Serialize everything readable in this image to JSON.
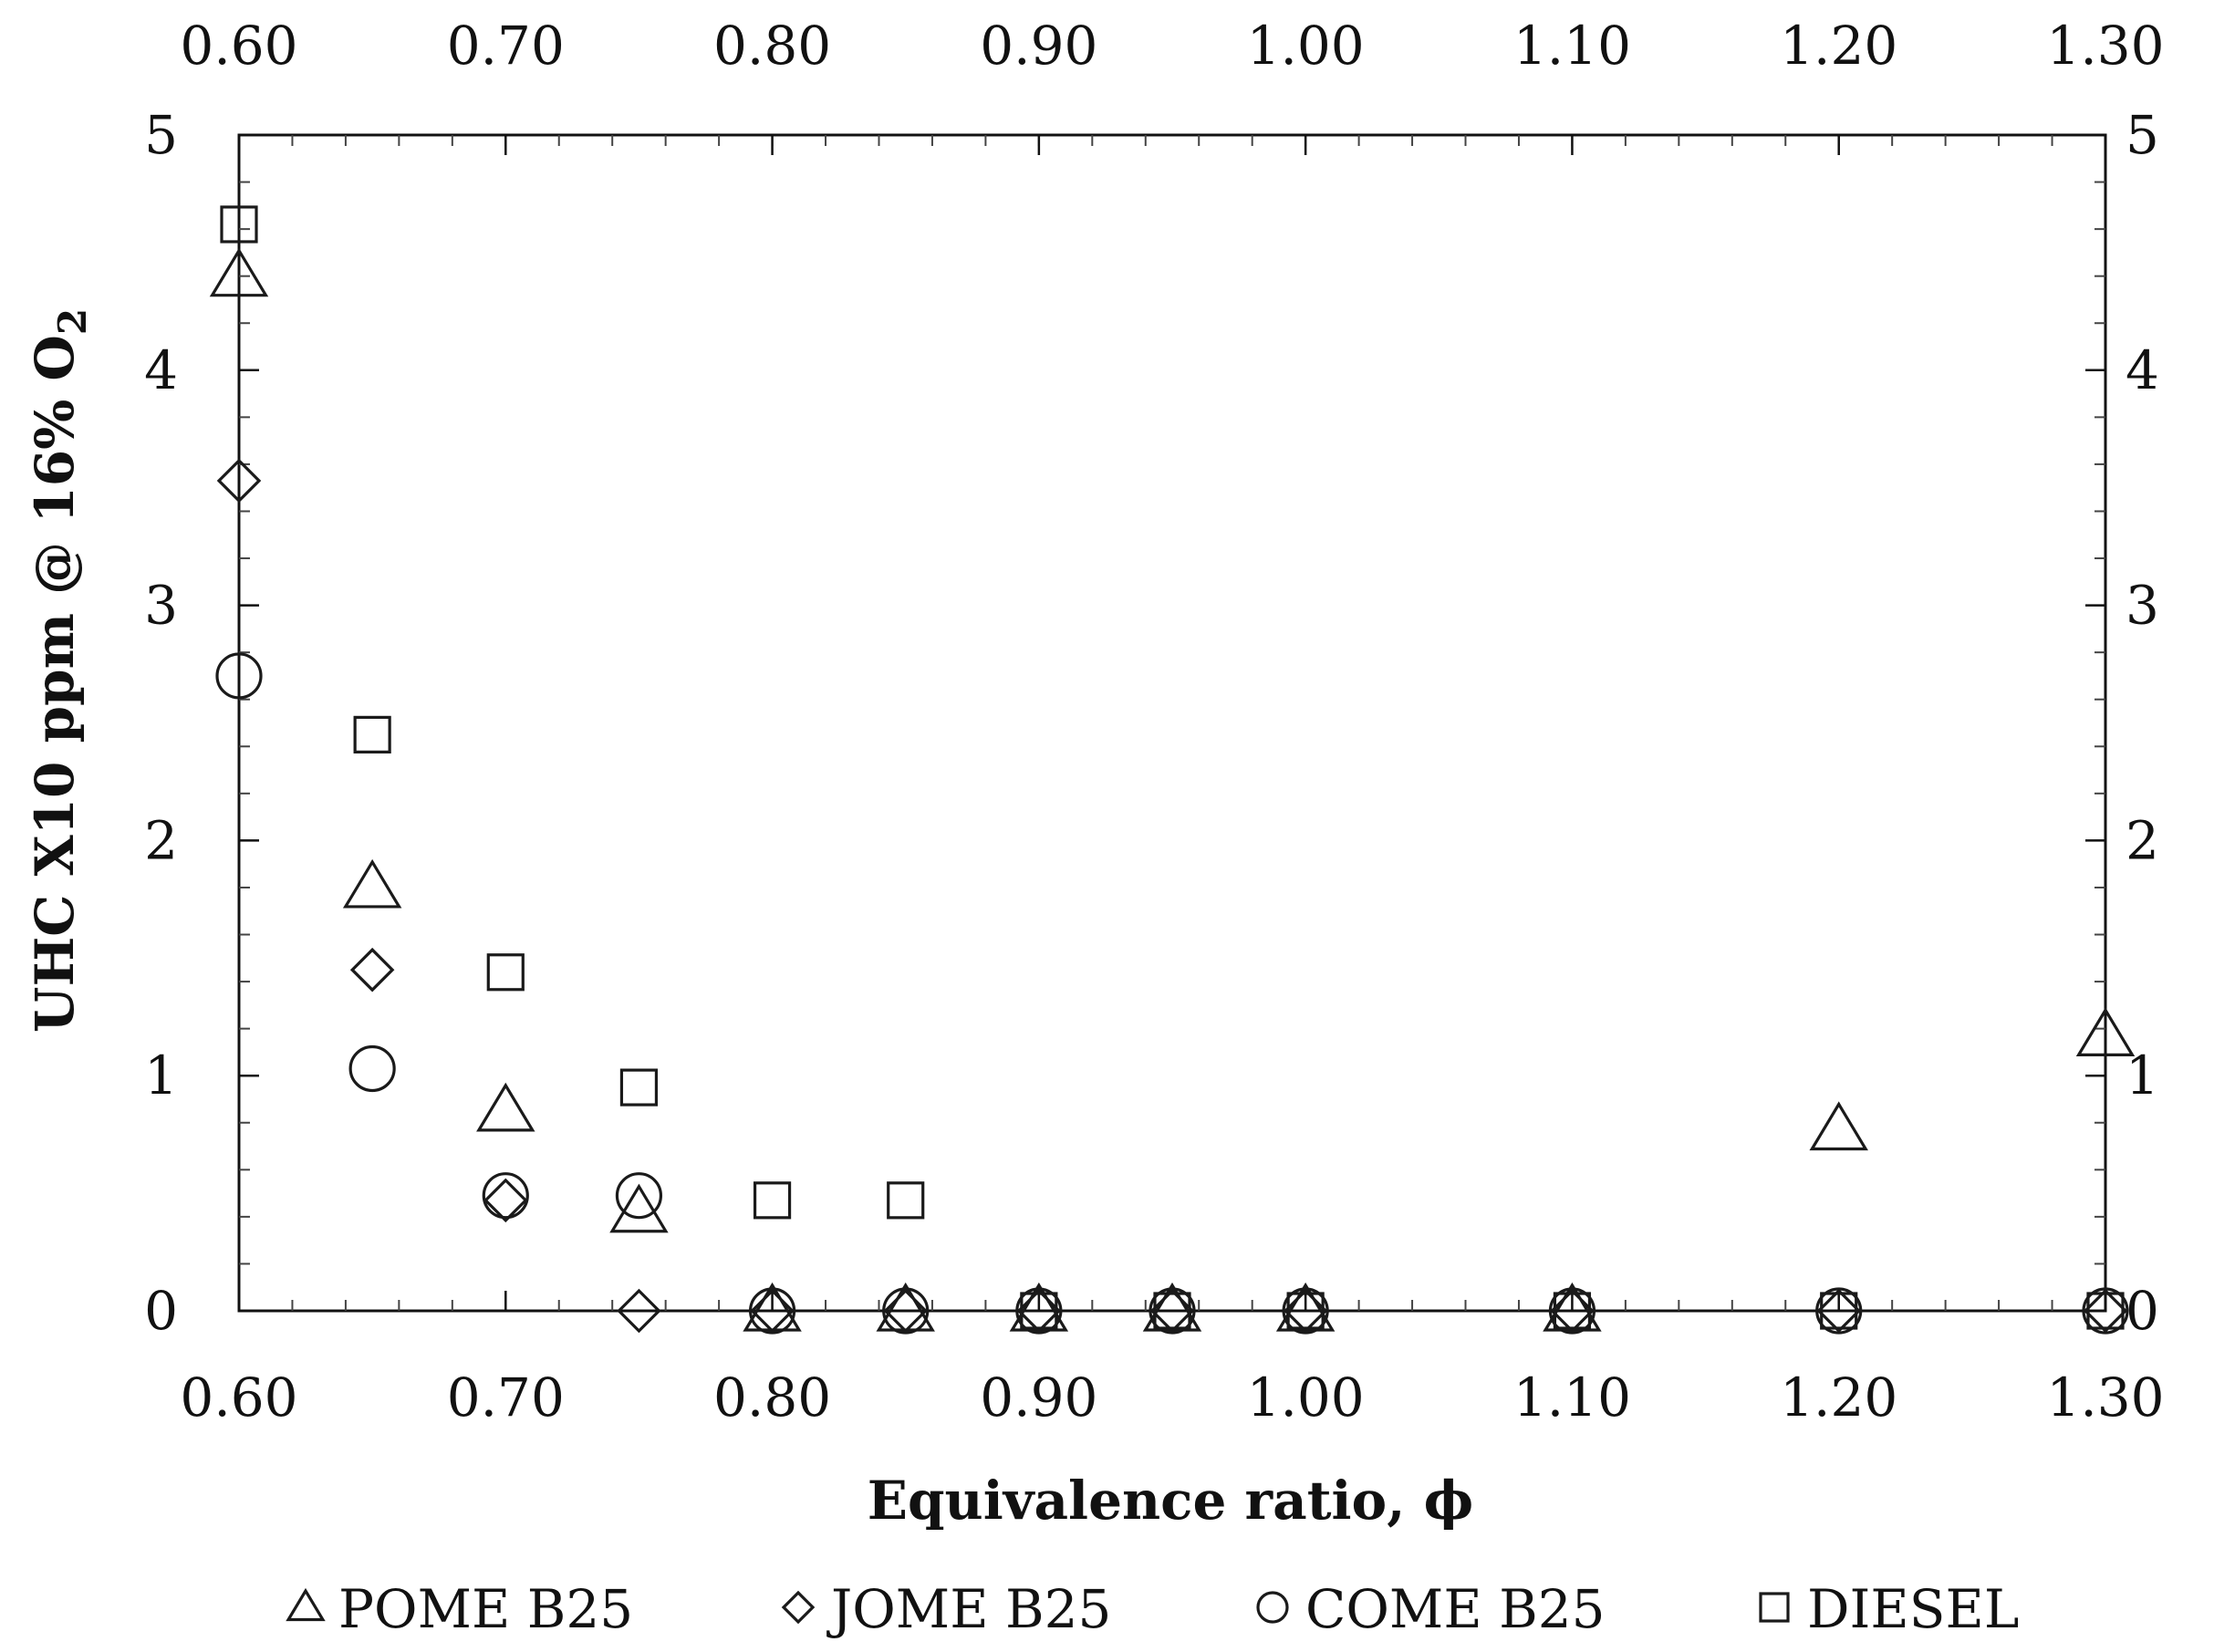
{
  "chart_data": {
    "type": "scatter",
    "xlabel": "Equivalence ratio, ϕ",
    "ylabel_main": "UHC X10 ppm @ 16% O",
    "ylabel_subscript": "2",
    "xlim": [
      0.6,
      1.3
    ],
    "ylim": [
      0,
      5
    ],
    "x_ticks": [
      "0.60",
      "0.70",
      "0.80",
      "0.90",
      "1.00",
      "1.10",
      "1.20",
      "1.30"
    ],
    "y_ticks": [
      "0",
      "1",
      "2",
      "3",
      "4",
      "5"
    ],
    "grid": false,
    "legend_position": "bottom",
    "series": [
      {
        "name": "POME B25",
        "marker": "triangle",
        "x": [
          0.6,
          0.65,
          0.7,
          0.75,
          0.8,
          0.85,
          0.9,
          0.95,
          1.0,
          1.1,
          1.2,
          1.3
        ],
        "y": [
          4.4,
          1.8,
          0.85,
          0.42,
          0,
          0,
          0,
          0,
          0,
          0,
          0.77,
          1.17
        ]
      },
      {
        "name": "JOME B25",
        "marker": "diamond",
        "x": [
          0.6,
          0.65,
          0.7,
          0.75,
          0.8,
          0.85,
          0.9,
          0.95,
          1.0,
          1.1,
          1.2,
          1.3
        ],
        "y": [
          3.53,
          1.45,
          0.47,
          0,
          0,
          0,
          0,
          0,
          0,
          0,
          0,
          0
        ]
      },
      {
        "name": "COME B25",
        "marker": "circle",
        "x": [
          0.6,
          0.65,
          0.7,
          0.75,
          0.8,
          0.85,
          0.9,
          0.95,
          1.0,
          1.1,
          1.2,
          1.3
        ],
        "y": [
          2.7,
          1.03,
          0.49,
          0.49,
          0,
          0,
          0,
          0,
          0,
          0,
          0,
          0
        ]
      },
      {
        "name": "DIESEL",
        "marker": "square",
        "x": [
          0.6,
          0.65,
          0.7,
          0.75,
          0.8,
          0.85,
          0.9,
          0.95,
          1.0,
          1.1,
          1.2,
          1.3
        ],
        "y": [
          4.62,
          2.45,
          1.44,
          0.95,
          0.47,
          0.47,
          0,
          0,
          0,
          0,
          0,
          0
        ]
      }
    ]
  }
}
